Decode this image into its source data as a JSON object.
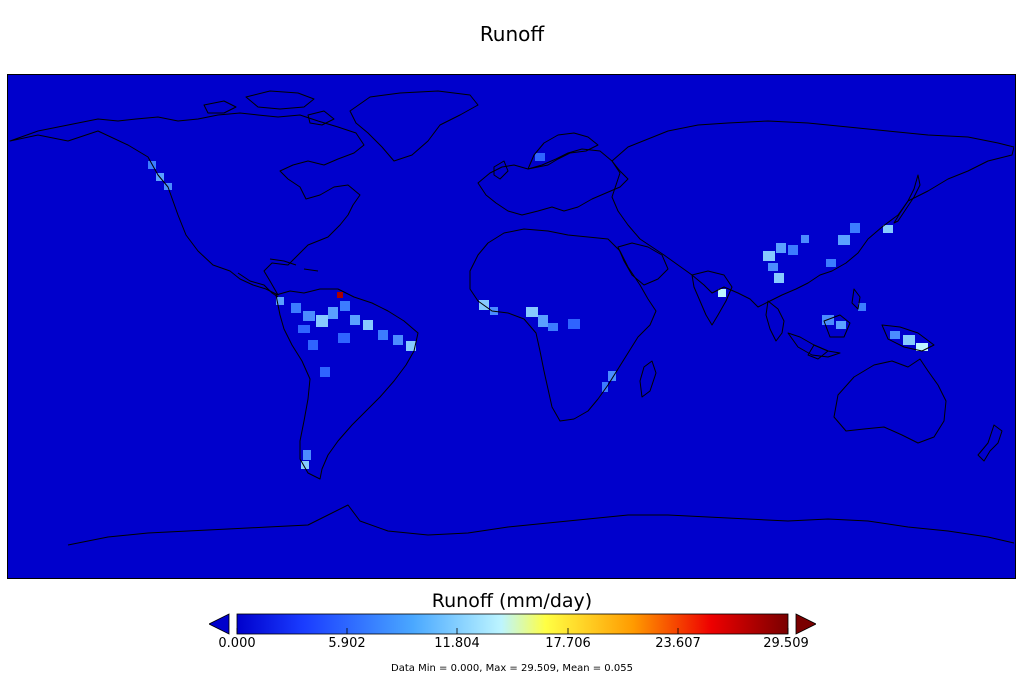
{
  "title": "Runoff",
  "colorbar": {
    "label": "Runoff (mm/day)",
    "ticks": [
      "0.000",
      "5.902",
      "11.804",
      "17.706",
      "23.607",
      "29.509"
    ],
    "range": [
      0.0,
      29.509
    ],
    "colors": [
      "#0000cc",
      "#1a3cff",
      "#4aa8ff",
      "#bdf5ff",
      "#ffff44",
      "#ff9a00",
      "#ee0000",
      "#7a0000"
    ]
  },
  "stats": "Data Min = 0.000, Max = 29.509, Mean = 0.055",
  "map": {
    "background_color": "#0000cc",
    "projection": "plate-carree"
  }
}
